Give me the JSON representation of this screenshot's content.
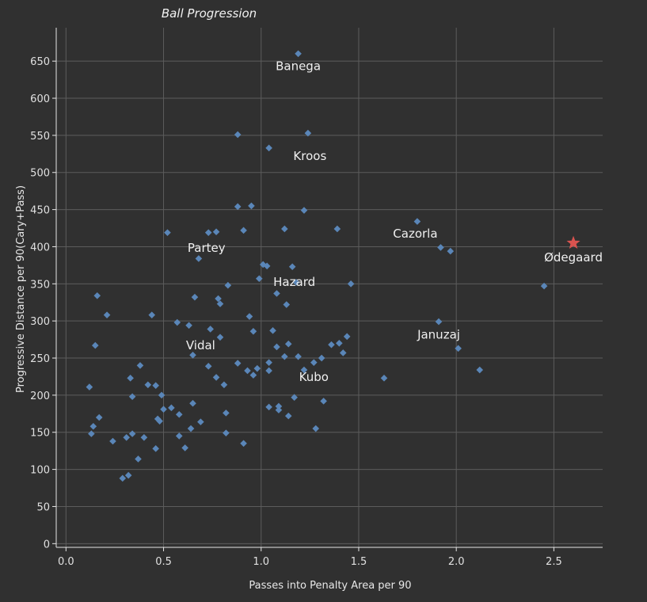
{
  "chart_data": {
    "type": "scatter",
    "title": "Ball Progression",
    "xlabel": "Passes into Penalty Area per 90",
    "ylabel": "Progressive Distance per 90(Cary+Pass)",
    "xlim": [
      -0.05,
      2.75
    ],
    "ylim": [
      -5,
      695
    ],
    "xticks": [
      0.0,
      0.5,
      1.0,
      1.5,
      2.0,
      2.5
    ],
    "xtick_labels": [
      "0.0",
      "0.5",
      "1.0",
      "1.5",
      "2.0",
      "2.5"
    ],
    "yticks": [
      0,
      50,
      100,
      150,
      200,
      250,
      300,
      350,
      400,
      450,
      500,
      550,
      600,
      650
    ],
    "ytick_labels": [
      "0",
      "50",
      "100",
      "150",
      "200",
      "250",
      "300",
      "350",
      "400",
      "450",
      "500",
      "550",
      "600",
      "650"
    ],
    "grid": true,
    "colors": {
      "points": "#5a86b8",
      "highlight": "#d9534f",
      "background": "#303030"
    },
    "series": [
      {
        "marker": "diamond",
        "x": [
          1.19,
          0.88,
          1.24,
          1.04,
          0.88,
          0.95,
          1.22,
          0.52,
          0.73,
          0.77,
          0.91,
          1.12,
          1.39,
          0.68,
          1.01,
          1.03,
          1.16,
          0.99,
          1.18,
          1.08,
          1.46,
          1.13,
          0.16,
          0.66,
          0.78,
          0.79,
          0.44,
          0.57,
          0.94,
          0.21,
          0.63,
          0.74,
          0.96,
          1.06,
          1.14,
          1.44,
          0.79,
          1.36,
          1.4,
          0.15,
          1.42,
          1.12,
          1.19,
          0.65,
          0.88,
          0.98,
          1.04,
          1.27,
          1.31,
          0.38,
          0.73,
          0.93,
          0.96,
          1.04,
          1.22,
          0.33,
          0.42,
          0.46,
          0.12,
          0.49,
          0.54,
          0.47,
          0.34,
          0.65,
          0.77,
          0.81,
          0.48,
          1.17,
          1.32,
          1.04,
          1.09,
          0.13,
          0.58,
          1.14,
          0.17,
          0.5,
          0.69,
          0.82,
          0.64,
          0.14,
          1.28,
          0.34,
          0.4,
          0.31,
          0.82,
          0.58,
          0.24,
          0.91,
          0.46,
          0.61,
          0.37,
          0.32,
          0.29,
          1.8,
          1.92,
          1.97,
          2.45,
          1.91,
          2.01,
          2.12,
          1.63,
          1.09,
          0.83,
          1.08
        ],
        "y": [
          660,
          551,
          553,
          533,
          454,
          455,
          449,
          419,
          419,
          420,
          422,
          424,
          424,
          384,
          376,
          374,
          373,
          357,
          352,
          337,
          350,
          322,
          334,
          332,
          330,
          323,
          308,
          298,
          306,
          308,
          294,
          289,
          286,
          287,
          269,
          279,
          278,
          268,
          270,
          267,
          257,
          252,
          252,
          254,
          243,
          236,
          244,
          244,
          250,
          240,
          239,
          233,
          227,
          233,
          234,
          223,
          214,
          213,
          211,
          200,
          183,
          168,
          198,
          189,
          224,
          214,
          165,
          197,
          192,
          184,
          180,
          148,
          174,
          172,
          170,
          181,
          164,
          176,
          155,
          158,
          155,
          148,
          143,
          143,
          149,
          145,
          138,
          135,
          128,
          129,
          114,
          92,
          88,
          434,
          399,
          394,
          347,
          299,
          263,
          234,
          223,
          185,
          348,
          265
        ]
      },
      {
        "marker": "star",
        "name": "Ødegaard",
        "x": [
          2.6
        ],
        "y": [
          405
        ]
      }
    ],
    "annotations": [
      {
        "text": "Banega",
        "x": 1.19,
        "y": 638
      },
      {
        "text": "Kroos",
        "x": 1.25,
        "y": 517
      },
      {
        "text": "Partey",
        "x": 0.72,
        "y": 393
      },
      {
        "text": "Hazard",
        "x": 1.17,
        "y": 347
      },
      {
        "text": "Cazorla",
        "x": 1.79,
        "y": 412
      },
      {
        "text": "Ødegaard",
        "x": 2.6,
        "y": 380
      },
      {
        "text": "Vidal",
        "x": 0.69,
        "y": 262
      },
      {
        "text": "Januzaj",
        "x": 1.91,
        "y": 276
      },
      {
        "text": "Kubo",
        "x": 1.27,
        "y": 219
      }
    ]
  }
}
